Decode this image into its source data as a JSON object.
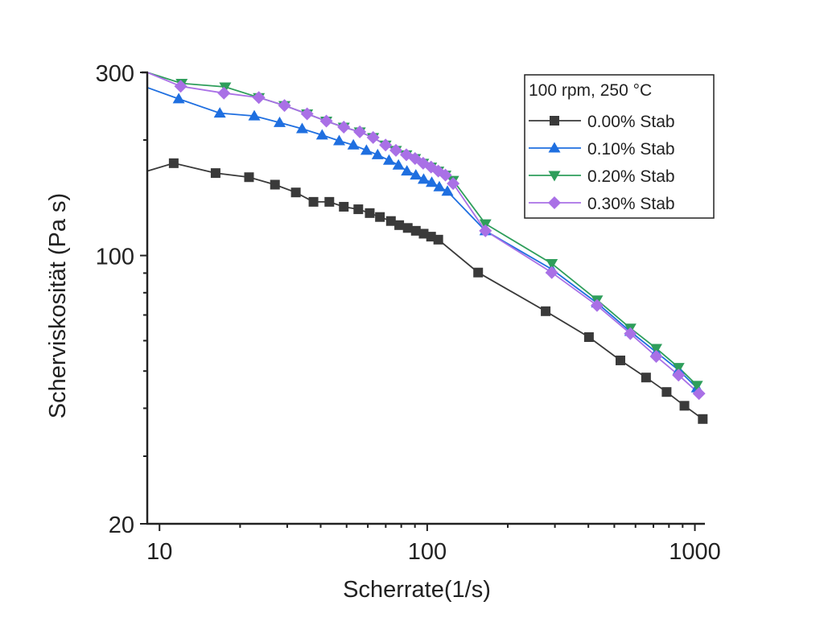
{
  "chart_data": {
    "type": "line",
    "title": "",
    "xlabel": "Scherrate(1/s)",
    "ylabel": "Scherviskosität (Pa s)",
    "xscale": "log",
    "yscale": "log",
    "xlim": [
      9,
      1090
    ],
    "ylim": [
      20,
      300
    ],
    "xticks": [
      10,
      100,
      1000
    ],
    "xtick_labels": [
      "10",
      "100",
      "1000"
    ],
    "yticks": [
      20,
      100,
      300
    ],
    "ytick_labels": [
      "20",
      "100",
      "300"
    ],
    "grid": false,
    "legend": {
      "title": "100 rpm, 250 °C",
      "placement": "top-right"
    },
    "series": [
      {
        "name": "0.00% Stab",
        "color": "#3a3a3a",
        "marker": "square",
        "x": [
          9,
          11.3,
          16.2,
          21.6,
          27.0,
          32.3,
          37.6,
          43.1,
          48.8,
          55.3,
          61.0,
          66.6,
          73.2,
          78.6,
          84.6,
          90.7,
          97.0,
          103.4,
          110,
          155,
          277,
          402,
          527,
          657,
          784,
          914,
          1070
        ],
        "y": [
          166,
          174,
          164,
          160,
          153,
          146,
          138,
          138,
          134,
          132,
          129,
          126,
          123,
          120,
          118,
          116,
          114,
          112,
          110,
          90.3,
          71.6,
          61.3,
          53.3,
          48.1,
          44.1,
          40.6,
          37.5
        ],
        "marker_from_index": 1
      },
      {
        "name": "0.10% Stab",
        "color": "#1f6fe0",
        "marker": "triangle-up",
        "x": [
          9,
          11.8,
          16.8,
          22.6,
          28.1,
          34.1,
          40.5,
          46.9,
          53.0,
          59.3,
          65.3,
          72.0,
          78.1,
          84.0,
          90.7,
          97.0,
          104,
          111,
          119,
          165,
          292,
          431,
          574,
          717,
          869,
          1018
        ],
        "y": [
          274,
          256,
          235,
          231,
          222,
          214,
          206,
          199,
          194,
          188,
          183,
          177,
          172,
          166,
          162,
          158,
          155,
          151,
          147,
          116,
          92.1,
          75.2,
          63.4,
          56.0,
          50.3,
          45.2
        ],
        "marker_from_index": 1
      },
      {
        "name": "0.20% Stab",
        "color": "#2e9e5b",
        "marker": "triangle-down",
        "x": [
          9,
          12.1,
          17.6,
          23.5,
          29.3,
          35.6,
          42.0,
          48.8,
          56.0,
          62.8,
          69.9,
          76.4,
          83.6,
          90.1,
          96.6,
          103.4,
          110,
          117,
          125,
          165,
          292,
          431,
          574,
          717,
          869,
          1018
        ],
        "y": [
          300,
          281,
          275,
          258,
          246,
          234,
          224,
          216,
          210,
          203,
          194,
          188,
          183,
          179,
          174,
          170,
          166,
          162,
          157,
          121,
          95.3,
          76.6,
          64.7,
          57.3,
          51.1,
          45.9
        ],
        "marker_from_index": 1
      },
      {
        "name": "0.30% Stab",
        "color": "#a970e6",
        "marker": "diamond",
        "x": [
          9,
          12.0,
          17.4,
          23.5,
          29.3,
          35.6,
          42.0,
          48.8,
          56.0,
          62.8,
          69.9,
          76.4,
          83.6,
          90.1,
          96.6,
          103.4,
          110,
          117,
          125,
          165,
          292,
          431,
          574,
          717,
          869,
          1036
        ],
        "y": [
          300,
          276,
          265,
          258,
          246,
          234,
          224,
          216,
          210,
          203,
          194,
          188,
          183,
          179,
          174,
          170,
          166,
          162,
          154,
          116,
          90.3,
          74.1,
          62.6,
          54.6,
          48.8,
          43.7
        ],
        "marker_from_index": 1
      }
    ]
  }
}
